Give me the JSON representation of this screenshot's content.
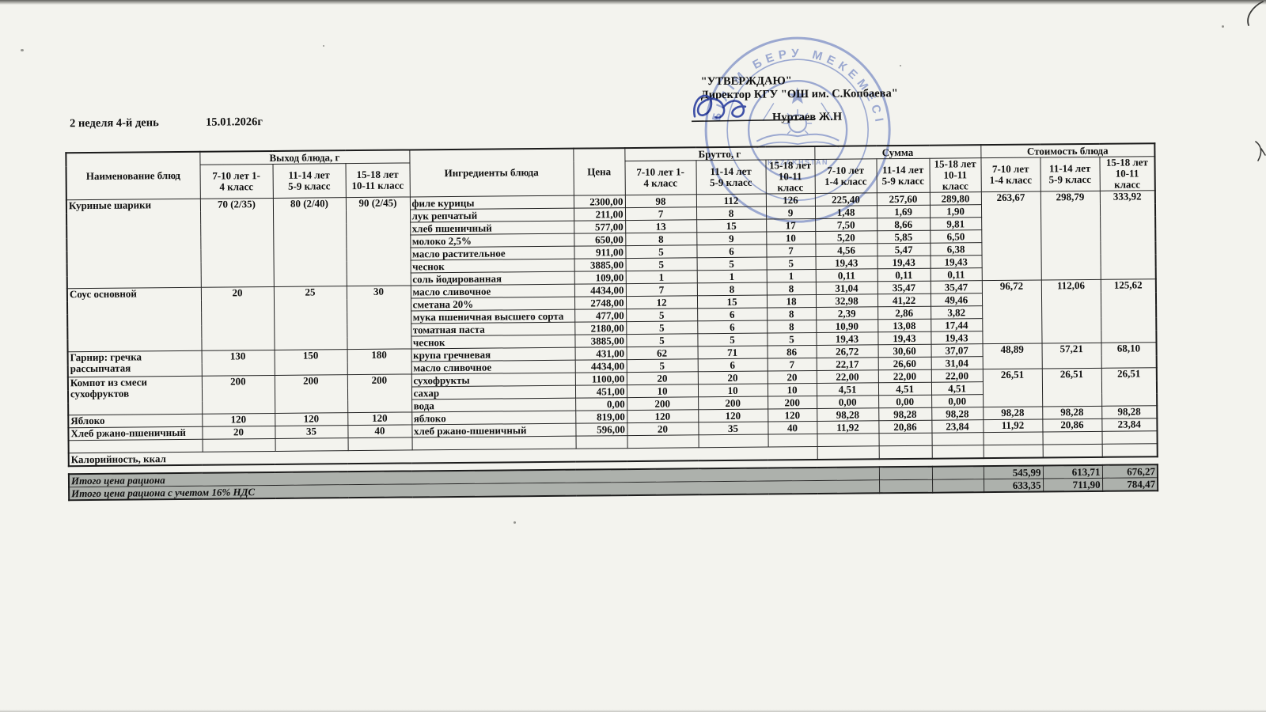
{
  "page": {
    "week_day": "2 неделя 4-й день",
    "date": "15.01.2026г"
  },
  "approval": {
    "title": "\"УТВЕРЖДАЮ\"",
    "director": "Директор КГУ \"ОШ им. С.Копбаева\"",
    "signer": "Нуртаев Ж.Н"
  },
  "stamp": {
    "ring_text": "БІЛІМ БЕРУ МЕКЕМЕСІ",
    "band_text": "KAZAKHSTAN",
    "ink_color": "#4a64b4"
  },
  "table": {
    "headers": {
      "name": "Наименование блюд",
      "output_group": "Выход блюда, г",
      "ingredients": "Ингредиенты блюда",
      "price": "Цена",
      "brutto_group": "Брутто, г",
      "summa_group": "Сумма",
      "cost_group": "Стоимость блюда"
    },
    "age_a": [
      {
        "top": "7-10 лет 1-",
        "bottom": "4 класс"
      },
      {
        "top": "11-14 лет",
        "bottom": "5-9 класс"
      },
      {
        "top": "15-18 лет",
        "bottom": "10-11 класс"
      }
    ],
    "age_b": [
      {
        "top": "7-10 лет",
        "bottom": "1-4 класс"
      },
      {
        "top": "11-14 лет",
        "bottom": "5-9 класс"
      },
      {
        "top": "15-18 лет",
        "bottom": "10-11 класс"
      }
    ],
    "dishes": [
      {
        "name": "Куриные шарики",
        "output": [
          "70 (2/35)",
          "80 (2/40)",
          "90 (2/45)"
        ],
        "cost": [
          "263,67",
          "298,79",
          "333,92"
        ],
        "ingredients": [
          {
            "name": "филе курицы",
            "price": "2300,00",
            "brutto": [
              "98",
              "112",
              "126"
            ],
            "summa": [
              "225,40",
              "257,60",
              "289,80"
            ]
          },
          {
            "name": "лук репчатый",
            "price": "211,00",
            "brutto": [
              "7",
              "8",
              "9"
            ],
            "summa": [
              "1,48",
              "1,69",
              "1,90"
            ]
          },
          {
            "name": "хлеб пшеничный",
            "price": "577,00",
            "brutto": [
              "13",
              "15",
              "17"
            ],
            "summa": [
              "7,50",
              "8,66",
              "9,81"
            ]
          },
          {
            "name": "молоко 2,5%",
            "price": "650,00",
            "brutto": [
              "8",
              "9",
              "10"
            ],
            "summa": [
              "5,20",
              "5,85",
              "6,50"
            ]
          },
          {
            "name": "масло растительное",
            "price": "911,00",
            "brutto": [
              "5",
              "6",
              "7"
            ],
            "summa": [
              "4,56",
              "5,47",
              "6,38"
            ]
          },
          {
            "name": "чеснок",
            "price": "3885,00",
            "brutto": [
              "5",
              "5",
              "5"
            ],
            "summa": [
              "19,43",
              "19,43",
              "19,43"
            ]
          },
          {
            "name": "соль йодированная",
            "price": "109,00",
            "brutto": [
              "1",
              "1",
              "1"
            ],
            "summa": [
              "0,11",
              "0,11",
              "0,11"
            ]
          }
        ]
      },
      {
        "name": "Соус основной",
        "output": [
          "20",
          "25",
          "30"
        ],
        "cost": [
          "96,72",
          "112,06",
          "125,62"
        ],
        "ingredients": [
          {
            "name": "масло сливочное",
            "price": "4434,00",
            "brutto": [
              "7",
              "8",
              "8"
            ],
            "summa": [
              "31,04",
              "35,47",
              "35,47"
            ]
          },
          {
            "name": "сметана 20%",
            "price": "2748,00",
            "brutto": [
              "12",
              "15",
              "18"
            ],
            "summa": [
              "32,98",
              "41,22",
              "49,46"
            ]
          },
          {
            "name": "мука пшеничная высшего сорта",
            "price": "477,00",
            "brutto": [
              "5",
              "6",
              "8"
            ],
            "summa": [
              "2,39",
              "2,86",
              "3,82"
            ]
          },
          {
            "name": "томатная паста",
            "price": "2180,00",
            "brutto": [
              "5",
              "6",
              "8"
            ],
            "summa": [
              "10,90",
              "13,08",
              "17,44"
            ]
          },
          {
            "name": "чеснок",
            "price": "3885,00",
            "brutto": [
              "5",
              "5",
              "5"
            ],
            "summa": [
              "19,43",
              "19,43",
              "19,43"
            ]
          }
        ]
      },
      {
        "name": "Гарнир: гречка рассыпчатая",
        "output": [
          "130",
          "150",
          "180"
        ],
        "cost": [
          "48,89",
          "57,21",
          "68,10"
        ],
        "ingredients": [
          {
            "name": "крупа гречневая",
            "price": "431,00",
            "brutto": [
              "62",
              "71",
              "86"
            ],
            "summa": [
              "26,72",
              "30,60",
              "37,07"
            ]
          },
          {
            "name": "масло сливочное",
            "price": "4434,00",
            "brutto": [
              "5",
              "6",
              "7"
            ],
            "summa": [
              "22,17",
              "26,60",
              "31,04"
            ]
          }
        ]
      },
      {
        "name": "Компот из смеси сухофруктов",
        "output": [
          "200",
          "200",
          "200"
        ],
        "cost": [
          "26,51",
          "26,51",
          "26,51"
        ],
        "ingredients": [
          {
            "name": "сухофрукты",
            "price": "1100,00",
            "brutto": [
              "20",
              "20",
              "20"
            ],
            "summa": [
              "22,00",
              "22,00",
              "22,00"
            ]
          },
          {
            "name": "сахар",
            "price": "451,00",
            "brutto": [
              "10",
              "10",
              "10"
            ],
            "summa": [
              "4,51",
              "4,51",
              "4,51"
            ]
          },
          {
            "name": "вода",
            "price": "0,00",
            "brutto": [
              "200",
              "200",
              "200"
            ],
            "summa": [
              "0,00",
              "0,00",
              "0,00"
            ]
          }
        ]
      },
      {
        "name": "Яблоко",
        "output": [
          "120",
          "120",
          "120"
        ],
        "cost": [
          "98,28",
          "98,28",
          "98,28"
        ],
        "ingredients": [
          {
            "name": "яблоко",
            "price": "819,00",
            "brutto": [
              "120",
              "120",
              "120"
            ],
            "summa": [
              "98,28",
              "98,28",
              "98,28"
            ]
          }
        ]
      },
      {
        "name": "Хлеб ржано-пшеничный",
        "output": [
          "20",
          "35",
          "40"
        ],
        "cost": [
          "11,92",
          "20,86",
          "23,84"
        ],
        "ingredients": [
          {
            "name": "хлеб ржано-пшеничный",
            "price": "596,00",
            "brutto": [
              "20",
              "35",
              "40"
            ],
            "summa": [
              "11,92",
              "20,86",
              "23,84"
            ]
          }
        ]
      }
    ]
  },
  "footer": {
    "calories_label": "Калорийность, ккал",
    "totals": [
      {
        "label": "Итого цена рациона",
        "values": [
          "545,99",
          "613,71",
          "676,27"
        ]
      },
      {
        "label": "Итого цена рациона с учетом 16% НДС",
        "values": [
          "633,35",
          "711,90",
          "784,47"
        ]
      }
    ]
  }
}
